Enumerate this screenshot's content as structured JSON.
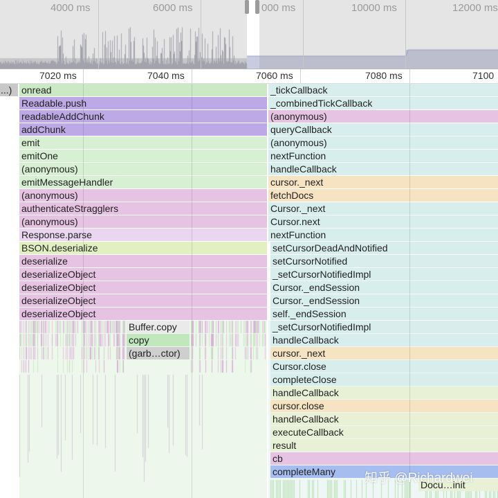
{
  "overview": {
    "labels": [
      "4000 ms",
      "6000 ms",
      "000 ms",
      "10000 ms",
      "12000 ms"
    ]
  },
  "ruler": {
    "labels": [
      "7020 ms",
      "7040 ms",
      "7060 ms",
      "7080 ms",
      "7100"
    ]
  },
  "left_stack": [
    {
      "label": "onread",
      "color": "#cbe9c5"
    },
    {
      "label": "Readable.push",
      "color": "#bda9e6"
    },
    {
      "label": "readableAddChunk",
      "color": "#bda9e6"
    },
    {
      "label": "addChunk",
      "color": "#bda9e6"
    },
    {
      "label": "emit",
      "color": "#d7efd2"
    },
    {
      "label": "emitOne",
      "color": "#d7efd2"
    },
    {
      "label": "(anonymous)",
      "color": "#d7efd2"
    },
    {
      "label": "emitMessageHandler",
      "color": "#d7efd2"
    },
    {
      "label": "(anonymous)",
      "color": "#e6c3e3"
    },
    {
      "label": "authenticateStragglers",
      "color": "#e6c3e3"
    },
    {
      "label": "(anonymous)",
      "color": "#e6c3e3"
    },
    {
      "label": "Response.parse",
      "color": "#ead6f0"
    },
    {
      "label": "BSON.deserialize",
      "color": "#e2efc0"
    },
    {
      "label": "deserialize",
      "color": "#e6c3e3"
    },
    {
      "label": "deserializeObject",
      "color": "#e6c3e3"
    },
    {
      "label": "deserializeObject",
      "color": "#e6c3e3"
    },
    {
      "label": "deserializeObject",
      "color": "#e6c3e3"
    },
    {
      "label": "deserializeObject",
      "color": "#e6c3e3"
    }
  ],
  "left_partial": {
    "label": "...)",
    "color": "#c8c8c8"
  },
  "left_children": [
    {
      "label": "Buffer.copy",
      "color": "#eaeaea"
    },
    {
      "label": "copy",
      "color": "#c1e7bd"
    },
    {
      "label": "(garb…ctor)",
      "color": "#cfcfcf"
    }
  ],
  "right_stack": [
    {
      "label": "_tickCallback",
      "color": "#d8eeec"
    },
    {
      "label": "_combinedTickCallback",
      "color": "#d8eeec"
    },
    {
      "label": "(anonymous)",
      "color": "#e6c3e3"
    },
    {
      "label": "queryCallback",
      "color": "#d8eeec"
    },
    {
      "label": "(anonymous)",
      "color": "#d8eeec"
    },
    {
      "label": "nextFunction",
      "color": "#d8eeec"
    },
    {
      "label": "handleCallback",
      "color": "#d8eeec"
    },
    {
      "label": "cursor._next",
      "color": "#f5e3c2"
    },
    {
      "label": "fetchDocs",
      "color": "#f5e3c2"
    },
    {
      "label": "Cursor._next",
      "color": "#d8eeec"
    },
    {
      "label": "Cursor.next",
      "color": "#d8eeec"
    },
    {
      "label": "nextFunction",
      "color": "#d8eeec"
    },
    {
      "label": "setCursorDeadAndNotified",
      "color": "#d8eeec"
    },
    {
      "label": "setCursorNotified",
      "color": "#d8eeec"
    },
    {
      "label": "_setCursorNotifiedImpl",
      "color": "#d8eeec"
    },
    {
      "label": "Cursor._endSession",
      "color": "#d8eeec"
    },
    {
      "label": "Cursor._endSession",
      "color": "#d8eeec"
    },
    {
      "label": "self._endSession",
      "color": "#d8eeec"
    },
    {
      "label": "_setCursorNotifiedImpl",
      "color": "#d8eeec"
    },
    {
      "label": "handleCallback",
      "color": "#d8eeec"
    },
    {
      "label": "cursor._next",
      "color": "#f5e3c2"
    },
    {
      "label": "Cursor.close",
      "color": "#d8eeec"
    },
    {
      "label": "completeClose",
      "color": "#d8eeec"
    },
    {
      "label": "handleCallback",
      "color": "#e8f1d6"
    },
    {
      "label": "cursor.close",
      "color": "#f5e3c2"
    },
    {
      "label": "handleCallback",
      "color": "#e8f1d6"
    },
    {
      "label": "executeCallback",
      "color": "#e8f1d6"
    },
    {
      "label": "result",
      "color": "#e8f1d6"
    },
    {
      "label": "cb",
      "color": "#e6c3e3"
    },
    {
      "label": "completeMany",
      "color": "#a6bdef"
    },
    {
      "label": "Docu…init",
      "color": "#e8f1d6"
    }
  ],
  "watermark": "知乎 @Richardwei"
}
